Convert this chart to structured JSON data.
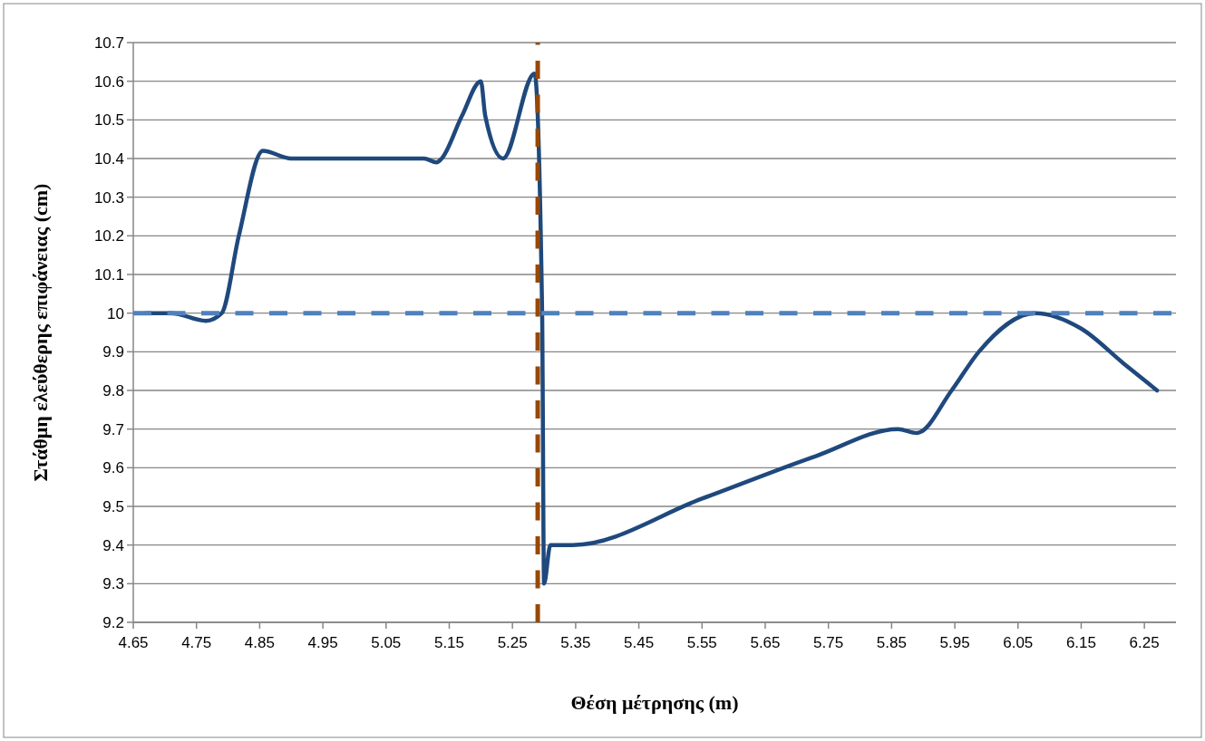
{
  "chart_data": {
    "type": "line",
    "xlabel": "Θέση μέτρησης (m)",
    "ylabel": "Στάθμη ελεύθερης επιφάνειας (cm)",
    "series": [
      {
        "color": "#1f497d",
        "x": [
          4.67,
          4.71,
          4.765,
          4.79,
          4.817,
          4.855,
          4.9,
          5.11,
          5.13,
          5.138,
          5.17,
          5.2,
          5.207,
          5.235,
          5.285,
          5.297,
          5.3,
          5.31,
          5.345,
          5.55,
          5.73,
          5.86,
          5.89,
          5.945,
          5.988,
          6.077,
          6.15,
          6.217,
          6.27
        ],
        "values": [
          10.0,
          10.0,
          9.98,
          10.0,
          10.2,
          10.42,
          10.4,
          10.4,
          10.39,
          10.4,
          10.51,
          10.6,
          10.51,
          10.4,
          10.62,
          10.0,
          9.3,
          9.4,
          9.4,
          9.52,
          9.63,
          9.7,
          9.69,
          9.8,
          9.9,
          10.0,
          9.96,
          9.87,
          9.8
        ]
      }
    ],
    "xlim": [
      4.65,
      6.3
    ],
    "xticks": [
      4.65,
      4.75,
      4.85,
      4.95,
      5.05,
      5.15,
      5.25,
      5.35,
      5.45,
      5.55,
      5.65,
      5.75,
      5.85,
      5.95,
      6.05,
      6.15,
      6.25
    ],
    "ylim": [
      9.2,
      10.7
    ],
    "yticks": [
      9.2,
      9.3,
      9.4,
      9.5,
      9.6,
      9.7,
      9.8,
      9.9,
      10,
      10.1,
      10.2,
      10.3,
      10.4,
      10.5,
      10.6,
      10.7
    ],
    "grid": "y",
    "marker": "none",
    "line_style": "solid",
    "ref_lines": [
      {
        "axis": "y",
        "value": 10,
        "color": "#4f81bd",
        "line_style": "dashed"
      },
      {
        "axis": "x",
        "value": 5.29,
        "color": "#974806",
        "line_style": "dashed"
      }
    ]
  }
}
